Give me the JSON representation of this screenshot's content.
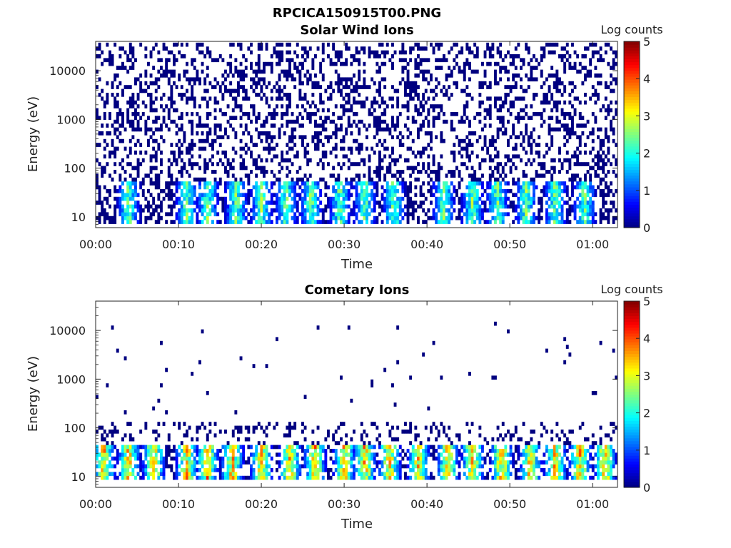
{
  "figure_title": "RPCICA150915T00.PNG",
  "chart_data": [
    {
      "type": "heatmap",
      "title": "Solar Wind Ions",
      "xlabel": "Time",
      "ylabel": "Energy (eV)",
      "yscale": "log",
      "xticks": [
        "00:00",
        "00:10",
        "00:20",
        "00:30",
        "00:40",
        "00:50",
        "01:00"
      ],
      "yticks": [
        "10",
        "100",
        "1000",
        "10000"
      ],
      "xlim_minutes": [
        0,
        63
      ],
      "ylim": [
        6,
        40000
      ],
      "colorbar": {
        "label": "Log counts",
        "ticks": [
          "0",
          "1",
          "2",
          "3",
          "4",
          "5"
        ],
        "range": [
          0,
          5
        ],
        "colormap": "jet"
      },
      "features": {
        "background_noise": {
          "energy_range": [
            50,
            40000
          ],
          "log_counts": 0,
          "density": 0.32
        },
        "bands": [
          {
            "energy_range": [
              7,
              50
            ],
            "log_counts_range": [
              0,
              3
            ]
          }
        ],
        "peak_times_minutes": [
          4,
          11,
          13.5,
          17,
          20,
          23,
          26,
          29.5,
          32.5,
          36,
          42,
          45.5,
          48.5,
          52,
          55.5,
          59
        ]
      }
    },
    {
      "type": "heatmap",
      "title": "Cometary Ions",
      "xlabel": "Time",
      "ylabel": "Energy (eV)",
      "yscale": "log",
      "xticks": [
        "00:00",
        "00:10",
        "00:20",
        "00:30",
        "00:40",
        "00:50",
        "01:00"
      ],
      "yticks": [
        "10",
        "100",
        "1000",
        "10000"
      ],
      "xlim_minutes": [
        0,
        63
      ],
      "ylim": [
        6,
        40000
      ],
      "colorbar": {
        "label": "Log counts",
        "ticks": [
          "0",
          "1",
          "2",
          "3",
          "4",
          "5"
        ],
        "range": [
          0,
          5
        ],
        "colormap": "jet"
      },
      "features": {
        "background_noise": {
          "energy_range": [
            150,
            20000
          ],
          "log_counts": 0,
          "density": 0.012
        },
        "bands": [
          {
            "energy_range": [
              8,
              45
            ],
            "log_counts_range": [
              0,
              4.3
            ]
          },
          {
            "energy_range": [
              45,
              130
            ],
            "log_counts": 0,
            "density": 0.18
          }
        ],
        "peak_times_minutes": [
          1,
          4,
          7,
          11,
          13.5,
          16.5,
          20,
          23.5,
          26.5,
          30,
          32.5,
          35.5,
          39,
          42.5,
          45.5,
          49,
          52.5,
          55.5,
          58.5,
          61.5
        ]
      }
    }
  ]
}
